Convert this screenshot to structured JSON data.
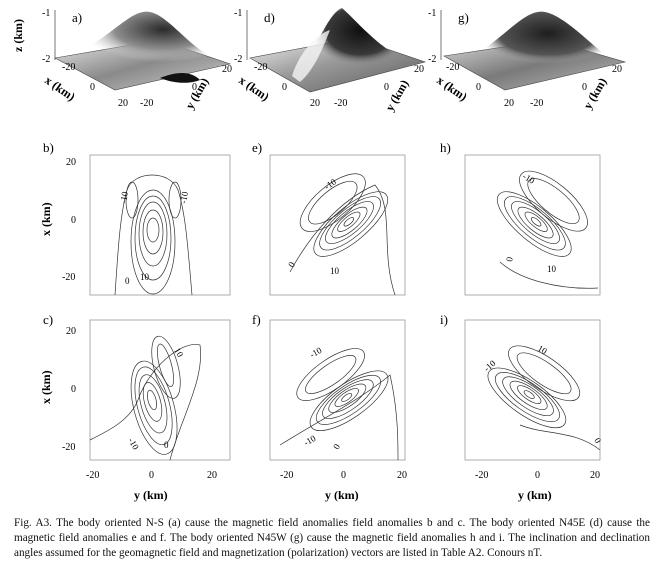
{
  "figure": {
    "surface_panels": [
      {
        "id": "a",
        "label": "a)",
        "z_axis_label": "z (km)",
        "z_ticks": [
          "-1",
          "-2"
        ],
        "x_axis_label": "x (km)",
        "y_axis_label": "y (km)",
        "x_ticks": [
          "-20",
          "0",
          "20"
        ],
        "y_ticks": [
          "-20",
          "0",
          "20"
        ],
        "orientation": "N-S"
      },
      {
        "id": "d",
        "label": "d)",
        "z_ticks": [
          "-1",
          "-2"
        ],
        "x_axis_label": "x (km)",
        "y_axis_label": "y (km)",
        "x_ticks": [
          "-20",
          "0",
          "20"
        ],
        "y_ticks": [
          "-20",
          "0",
          "20"
        ],
        "orientation": "N45E"
      },
      {
        "id": "g",
        "label": "g)",
        "z_ticks": [
          "-1",
          "-2"
        ],
        "x_axis_label": "x (km)",
        "y_axis_label": "y (km)",
        "x_ticks": [
          "-20",
          "0",
          "20"
        ],
        "y_ticks": [
          "-20",
          "0",
          "20"
        ],
        "orientation": "N45W"
      }
    ],
    "contour_panels": [
      {
        "id": "b",
        "label": "b)",
        "labels": [
          "-10",
          "-10",
          "0",
          "10"
        ]
      },
      {
        "id": "e",
        "label": "e)",
        "labels": [
          "-10",
          "0",
          "10"
        ]
      },
      {
        "id": "h",
        "label": "h)",
        "labels": [
          "-10",
          "0",
          "10"
        ]
      },
      {
        "id": "c",
        "label": "c)",
        "labels": [
          "10",
          "-10",
          "0"
        ]
      },
      {
        "id": "f",
        "label": "f)",
        "labels": [
          "-10",
          "-10",
          "0"
        ]
      },
      {
        "id": "i",
        "label": "i)",
        "labels": [
          "-10",
          "10",
          "0"
        ]
      }
    ],
    "axes": {
      "x_label": "x (km)",
      "y_label": "y (km)",
      "x_ticks": [
        "20",
        "0",
        "-20"
      ],
      "y_ticks": [
        "-20",
        "0",
        "20"
      ]
    },
    "colors": {
      "ink": "#111111",
      "contour": "#333333",
      "frame": "#999999"
    }
  },
  "caption": "Fig. A3. The body oriented N-S (a) cause the magnetic field anomalies field anomalies b and c. The body oriented N45E (d) cause the magnetic field anomalies e and f. The body oriented N45W (g) cause the magnetic field anomalies h and i. The inclination and declination angles assumed for the geomagnetic field and magnetization (polarization) vectors are listed in Table A2. Conours nT."
}
